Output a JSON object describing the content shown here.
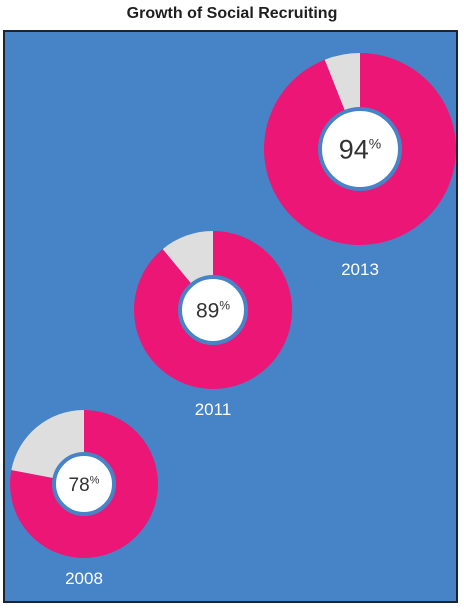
{
  "chart_data": {
    "type": "pie",
    "title": "Growth of Social Recruiting",
    "xlabel": "",
    "ylabel": "",
    "categories": [
      "2008",
      "2011",
      "2013"
    ],
    "values": [
      78,
      89,
      94
    ],
    "value_suffix": "%",
    "colors": {
      "filled": "#ec1676",
      "remainder": "#dedede",
      "background": "#4684c7",
      "center": "#ffffff",
      "center_ring": "#4684c7",
      "label_text": "#ffffff",
      "value_text": "#333333"
    },
    "grid": false,
    "legend": "none"
  }
}
